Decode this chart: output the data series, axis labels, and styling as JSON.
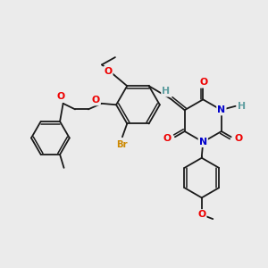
{
  "bg_color": "#ebebeb",
  "bond_color": "#1a1a1a",
  "bond_width": 1.3,
  "atom_colors": {
    "O": "#ee0000",
    "N": "#0000cc",
    "Br": "#cc8800",
    "H": "#5f9ea0",
    "C": "#1a1a1a"
  },
  "font_size": 7.8
}
